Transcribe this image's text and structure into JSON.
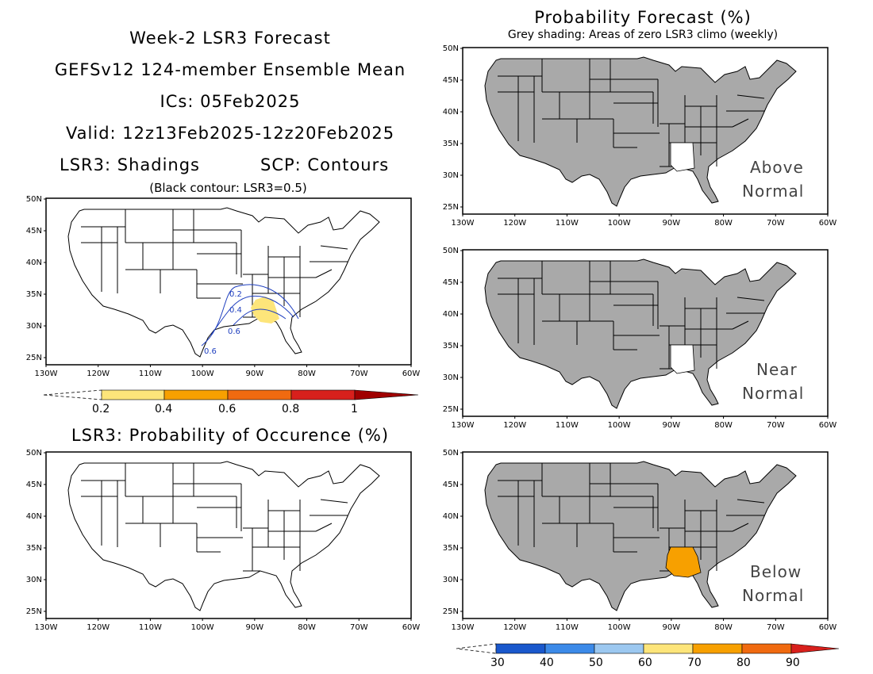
{
  "header": {
    "line1": "Week-2 LSR3 Forecast",
    "line2": "GEFSv12 124-member Ensemble Mean",
    "line3": "ICs: 05Feb2025",
    "line4": "Valid: 12z13Feb2025-12z20Feb2025",
    "line5_left": "LSR3: Shadings",
    "line5_right": "SCP: Contours",
    "note": "(Black contour: LSR3=0.5)"
  },
  "occurrence_title": "LSR3: Probability of Occurence (%)",
  "prob_title": "Probability Forecast (%)",
  "prob_subtitle": "Grey shading: Areas of zero LSR3 climo (weekly)",
  "axes": {
    "lat_labels": [
      "50N",
      "45N",
      "40N",
      "35N",
      "30N",
      "25N"
    ],
    "lon_labels": [
      "130W",
      "120W",
      "110W",
      "100W",
      "90W",
      "80W",
      "70W",
      "60W"
    ]
  },
  "panels": {
    "above": {
      "line1": "Above",
      "line2": "Normal"
    },
    "near": {
      "line1": "Near",
      "line2": "Normal"
    },
    "below": {
      "line1": "Below",
      "line2": "Normal"
    }
  },
  "contours": {
    "labels": [
      "0.2",
      "0.4",
      "0.6",
      "0.6"
    ],
    "color": "#1f3fbf"
  },
  "colorbar_lsr": {
    "labels": [
      "0.2",
      "0.4",
      "0.6",
      "0.8",
      "1"
    ],
    "colors": [
      "#fde57a",
      "#f7a000",
      "#f06a10",
      "#d8201c",
      "#a00000"
    ]
  },
  "colorbar_prob": {
    "labels": [
      "30",
      "40",
      "50",
      "60",
      "70",
      "80",
      "90"
    ],
    "colors": [
      "#1a58cc",
      "#3c8ae8",
      "#9cc8f0",
      "#ffffff",
      "#fde57a",
      "#f7a000",
      "#f06a10",
      "#d8201c"
    ]
  },
  "colors": {
    "grey_shade": "#a9a9a9",
    "lsr_low": "#fde57a",
    "prob_orange": "#f7a000"
  }
}
